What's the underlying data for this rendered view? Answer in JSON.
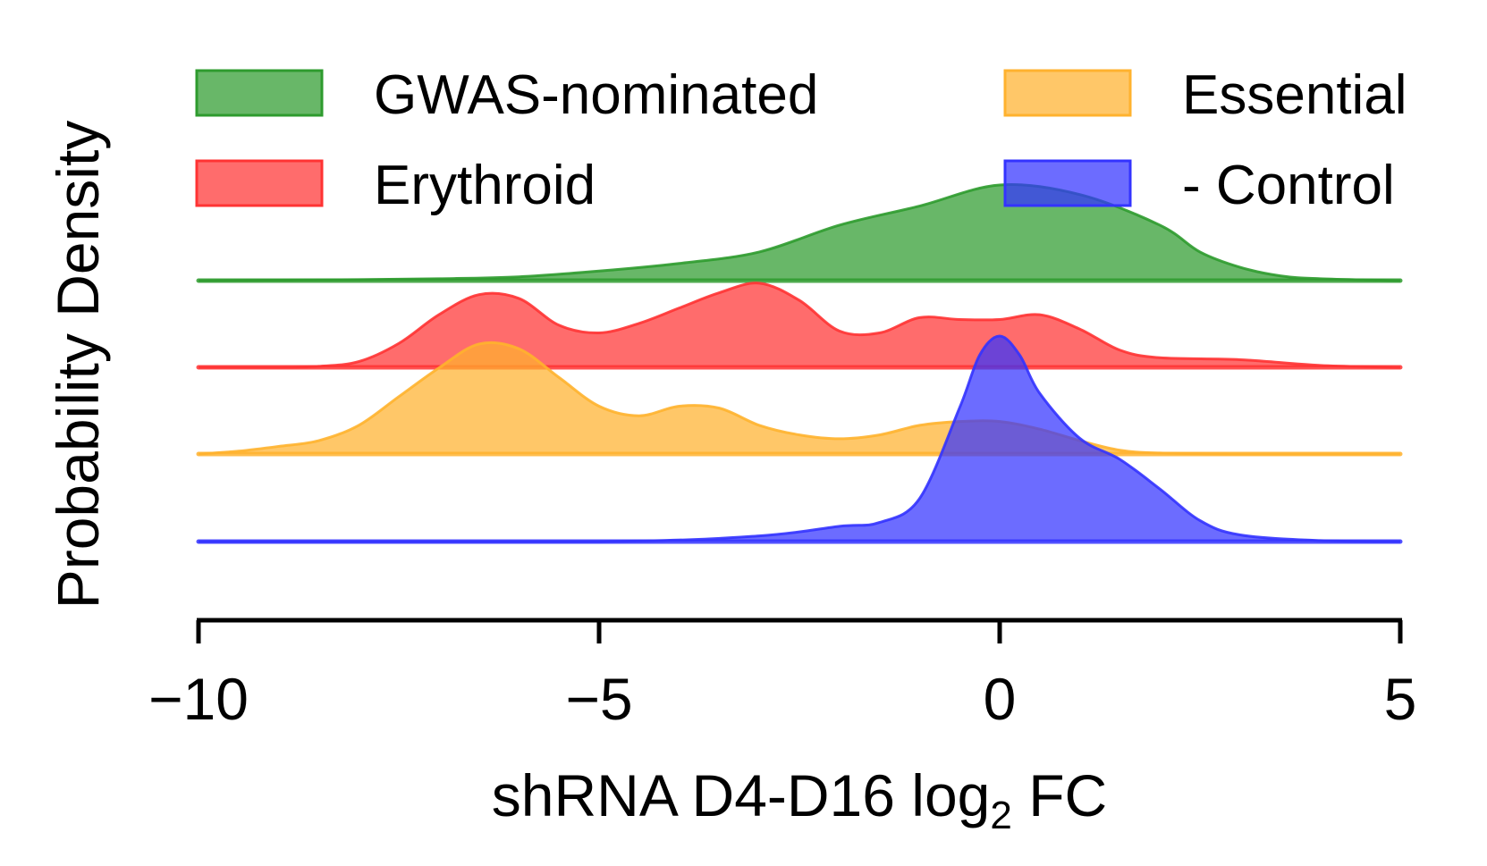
{
  "chart_data": {
    "type": "area",
    "subtype": "ridgeline-density",
    "xlabel": "shRNA D4-D16 log",
    "xlabel_subscript": "2",
    "xlabel_suffix": " FC",
    "ylabel": "Probability Density",
    "xlim": [
      -10,
      5
    ],
    "xticks": [
      -10,
      -5,
      0,
      5
    ],
    "xtick_labels": [
      "−10",
      "−5",
      "0",
      "5"
    ],
    "grid": false,
    "legend_placement": "top, two columns",
    "y_ticks_shown": false,
    "series": [
      {
        "name": "GWAS-nominated",
        "color": "#2e9b2e",
        "baseline_index": 0,
        "points": [
          [
            -10,
            0
          ],
          [
            -9,
            0.005
          ],
          [
            -8,
            0.01
          ],
          [
            -7,
            0.02
          ],
          [
            -6,
            0.04
          ],
          [
            -5,
            0.1
          ],
          [
            -4,
            0.18
          ],
          [
            -3,
            0.3
          ],
          [
            -2,
            0.58
          ],
          [
            -1,
            0.78
          ],
          [
            0,
            1
          ],
          [
            1,
            0.9
          ],
          [
            2,
            0.58
          ],
          [
            2.5,
            0.3
          ],
          [
            3,
            0.14
          ],
          [
            3.5,
            0.05
          ],
          [
            4,
            0.02
          ],
          [
            5,
            0
          ]
        ]
      },
      {
        "name": "Erythroid",
        "color": "#ff3333",
        "baseline_index": 1,
        "points": [
          [
            -10,
            0
          ],
          [
            -9,
            0
          ],
          [
            -8.5,
            0.01
          ],
          [
            -8,
            0.06
          ],
          [
            -7.5,
            0.25
          ],
          [
            -7,
            0.55
          ],
          [
            -6.5,
            0.76
          ],
          [
            -6,
            0.72
          ],
          [
            -5.5,
            0.44
          ],
          [
            -5,
            0.36
          ],
          [
            -4.5,
            0.46
          ],
          [
            -4,
            0.62
          ],
          [
            -3.5,
            0.78
          ],
          [
            -3,
            0.88
          ],
          [
            -2.5,
            0.7
          ],
          [
            -2,
            0.38
          ],
          [
            -1.5,
            0.36
          ],
          [
            -1,
            0.52
          ],
          [
            -0.5,
            0.5
          ],
          [
            0,
            0.5
          ],
          [
            0.5,
            0.55
          ],
          [
            1,
            0.4
          ],
          [
            1.5,
            0.18
          ],
          [
            2,
            0.1
          ],
          [
            3,
            0.08
          ],
          [
            4,
            0.02
          ],
          [
            5,
            0
          ]
        ]
      },
      {
        "name": "Essential",
        "color": "#ffb22e",
        "baseline_index": 2,
        "points": [
          [
            -10,
            0
          ],
          [
            -9.5,
            0.03
          ],
          [
            -9,
            0.08
          ],
          [
            -8.5,
            0.14
          ],
          [
            -8,
            0.3
          ],
          [
            -7.5,
            0.6
          ],
          [
            -7,
            0.9
          ],
          [
            -6.5,
            1.15
          ],
          [
            -6,
            1.1
          ],
          [
            -5.5,
            0.8
          ],
          [
            -5,
            0.5
          ],
          [
            -4.5,
            0.4
          ],
          [
            -4,
            0.5
          ],
          [
            -3.5,
            0.48
          ],
          [
            -3,
            0.3
          ],
          [
            -2.5,
            0.2
          ],
          [
            -2,
            0.16
          ],
          [
            -1.5,
            0.2
          ],
          [
            -1,
            0.3
          ],
          [
            -0.5,
            0.34
          ],
          [
            0,
            0.34
          ],
          [
            0.5,
            0.26
          ],
          [
            1,
            0.14
          ],
          [
            1.5,
            0.04
          ],
          [
            2,
            0.01
          ],
          [
            3,
            0
          ],
          [
            5,
            0
          ]
        ]
      },
      {
        "name": "- Control",
        "color": "#3333ff",
        "baseline_index": 3,
        "points": [
          [
            -10,
            0
          ],
          [
            -5,
            0
          ],
          [
            -3,
            0.06
          ],
          [
            -2,
            0.16
          ],
          [
            -1.5,
            0.2
          ],
          [
            -1,
            0.45
          ],
          [
            -0.5,
            1.4
          ],
          [
            -0.25,
            1.95
          ],
          [
            0,
            2.15
          ],
          [
            0.25,
            1.95
          ],
          [
            0.5,
            1.55
          ],
          [
            1,
            1.08
          ],
          [
            1.5,
            0.86
          ],
          [
            2,
            0.55
          ],
          [
            2.5,
            0.22
          ],
          [
            3,
            0.07
          ],
          [
            4,
            0.01
          ],
          [
            5,
            0
          ]
        ]
      }
    ]
  }
}
